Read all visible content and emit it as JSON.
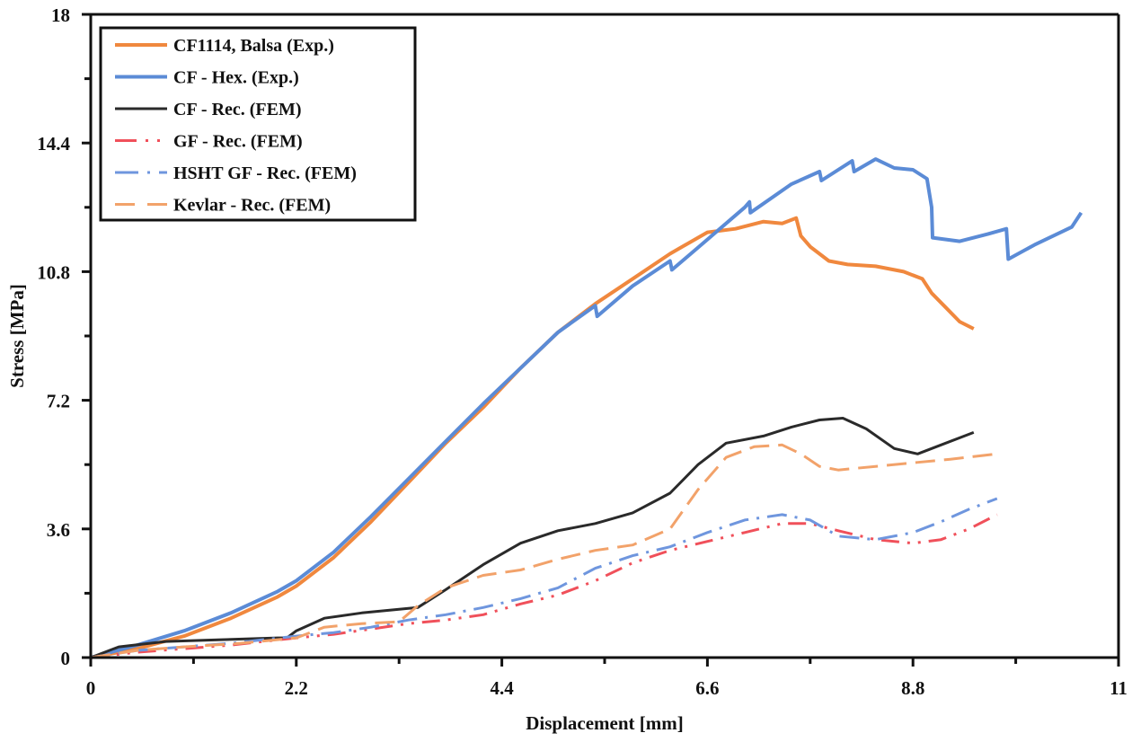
{
  "chart_data": {
    "type": "line",
    "title": "",
    "xlabel": "Displacement [mm]",
    "ylabel": "Stress [MPa]",
    "xlim": [
      0,
      11
    ],
    "ylim": [
      0,
      18
    ],
    "xticks": [
      0,
      2.2,
      4.4,
      6.6,
      8.8,
      11
    ],
    "xtick_labels": [
      "0",
      "2.2",
      "4.4",
      "6.6",
      "8.8",
      "11"
    ],
    "yticks": [
      0,
      3.6,
      7.2,
      10.8,
      14.4,
      18
    ],
    "ytick_labels": [
      "0",
      "3.6",
      "7.2",
      "10.8",
      "14.4",
      "18"
    ],
    "minor_ticks": true,
    "grid": false,
    "legend_position": "top-left",
    "series": [
      {
        "name": "CF1114, Balsa (Exp.)",
        "color": "#F0883E",
        "style": "solid",
        "x": [
          0,
          0.5,
          1.0,
          1.5,
          2.0,
          2.2,
          2.6,
          3.0,
          3.4,
          3.8,
          4.2,
          4.6,
          5.0,
          5.4,
          5.8,
          6.2,
          6.6,
          6.9,
          7.2,
          7.4,
          7.55,
          7.6,
          7.7,
          7.9,
          8.1,
          8.4,
          8.7,
          8.9,
          9.0,
          9.15,
          9.3,
          9.45
        ],
        "y": [
          0,
          0.25,
          0.6,
          1.1,
          1.7,
          2.0,
          2.8,
          3.8,
          4.9,
          6.0,
          7.0,
          8.1,
          9.1,
          9.9,
          10.6,
          11.3,
          11.9,
          12.0,
          12.2,
          12.15,
          12.3,
          11.8,
          11.5,
          11.1,
          11.0,
          10.95,
          10.8,
          10.6,
          10.2,
          9.8,
          9.4,
          9.2
        ]
      },
      {
        "name": "CF - Hex. (Exp.)",
        "color": "#5B8BD6",
        "style": "solid",
        "x": [
          0,
          0.5,
          1.0,
          1.5,
          2.0,
          2.2,
          2.6,
          3.0,
          3.4,
          3.8,
          4.2,
          4.6,
          5.0,
          5.4,
          5.42,
          5.8,
          6.2,
          6.22,
          6.6,
          7.0,
          7.05,
          7.06,
          7.5,
          7.8,
          7.82,
          8.15,
          8.17,
          8.4,
          8.6,
          8.8,
          8.95,
          9.0,
          9.01,
          9.3,
          9.6,
          9.8,
          9.82,
          10.1,
          10.5,
          10.6
        ],
        "y": [
          0,
          0.35,
          0.75,
          1.25,
          1.85,
          2.15,
          2.95,
          3.95,
          5.0,
          6.05,
          7.1,
          8.1,
          9.1,
          9.85,
          9.55,
          10.4,
          11.1,
          10.85,
          11.7,
          12.6,
          12.75,
          12.45,
          13.25,
          13.6,
          13.35,
          13.9,
          13.6,
          13.95,
          13.7,
          13.65,
          13.4,
          12.6,
          11.75,
          11.65,
          11.85,
          12.0,
          11.15,
          11.55,
          12.05,
          12.45
        ]
      },
      {
        "name": "CF - Rec. (FEM)",
        "color": "#2A2A2A",
        "style": "solid",
        "x": [
          0,
          0.3,
          0.8,
          1.4,
          2.0,
          2.1,
          2.2,
          2.5,
          2.9,
          3.3,
          3.5,
          3.8,
          4.2,
          4.6,
          5.0,
          5.4,
          5.8,
          6.2,
          6.5,
          6.8,
          7.2,
          7.5,
          7.8,
          8.05,
          8.3,
          8.6,
          8.85,
          9.1,
          9.45
        ],
        "y": [
          0,
          0.3,
          0.45,
          0.5,
          0.55,
          0.55,
          0.75,
          1.1,
          1.25,
          1.35,
          1.4,
          1.9,
          2.6,
          3.2,
          3.55,
          3.75,
          4.05,
          4.6,
          5.4,
          6.0,
          6.2,
          6.45,
          6.65,
          6.7,
          6.4,
          5.85,
          5.7,
          5.95,
          6.3
        ]
      },
      {
        "name": "GF - Rec. (FEM)",
        "color": "#F0505A",
        "style": "dash-dot-dot",
        "x": [
          0,
          0.5,
          1.0,
          1.5,
          2.2,
          2.6,
          3.0,
          3.4,
          3.8,
          4.2,
          4.6,
          5.0,
          5.4,
          5.8,
          6.2,
          6.6,
          7.0,
          7.4,
          7.7,
          8.0,
          8.4,
          8.8,
          9.1,
          9.4,
          9.7
        ],
        "y": [
          0,
          0.15,
          0.25,
          0.35,
          0.55,
          0.65,
          0.8,
          0.95,
          1.05,
          1.2,
          1.5,
          1.75,
          2.15,
          2.65,
          3.0,
          3.25,
          3.5,
          3.75,
          3.75,
          3.55,
          3.3,
          3.2,
          3.3,
          3.6,
          4.0
        ]
      },
      {
        "name": "HSHT GF - Rec. (FEM)",
        "color": "#6F96DE",
        "style": "dash-dot",
        "x": [
          0,
          0.5,
          1.0,
          1.5,
          2.2,
          2.6,
          3.0,
          3.4,
          3.8,
          4.2,
          4.6,
          5.0,
          5.4,
          5.8,
          6.2,
          6.6,
          7.0,
          7.4,
          7.7,
          8.0,
          8.4,
          8.8,
          9.1,
          9.4,
          9.7
        ],
        "y": [
          0,
          0.2,
          0.3,
          0.4,
          0.6,
          0.7,
          0.85,
          1.05,
          1.2,
          1.4,
          1.65,
          1.95,
          2.5,
          2.85,
          3.1,
          3.5,
          3.85,
          4.0,
          3.85,
          3.4,
          3.3,
          3.5,
          3.8,
          4.15,
          4.45
        ]
      },
      {
        "name": "Kevlar - Rec. (FEM)",
        "color": "#F2A26A",
        "style": "dashed",
        "x": [
          0,
          0.5,
          1.0,
          1.6,
          2.2,
          2.5,
          2.9,
          3.3,
          3.5,
          3.8,
          4.2,
          4.6,
          5.0,
          5.4,
          5.8,
          6.2,
          6.5,
          6.8,
          7.1,
          7.4,
          7.6,
          7.8,
          8.0,
          8.4,
          8.8,
          9.2,
          9.7
        ],
        "y": [
          0,
          0.2,
          0.3,
          0.4,
          0.55,
          0.85,
          0.95,
          1.0,
          1.45,
          1.95,
          2.3,
          2.45,
          2.75,
          3.0,
          3.15,
          3.6,
          4.7,
          5.6,
          5.9,
          5.95,
          5.7,
          5.35,
          5.25,
          5.35,
          5.45,
          5.55,
          5.7
        ]
      }
    ]
  }
}
